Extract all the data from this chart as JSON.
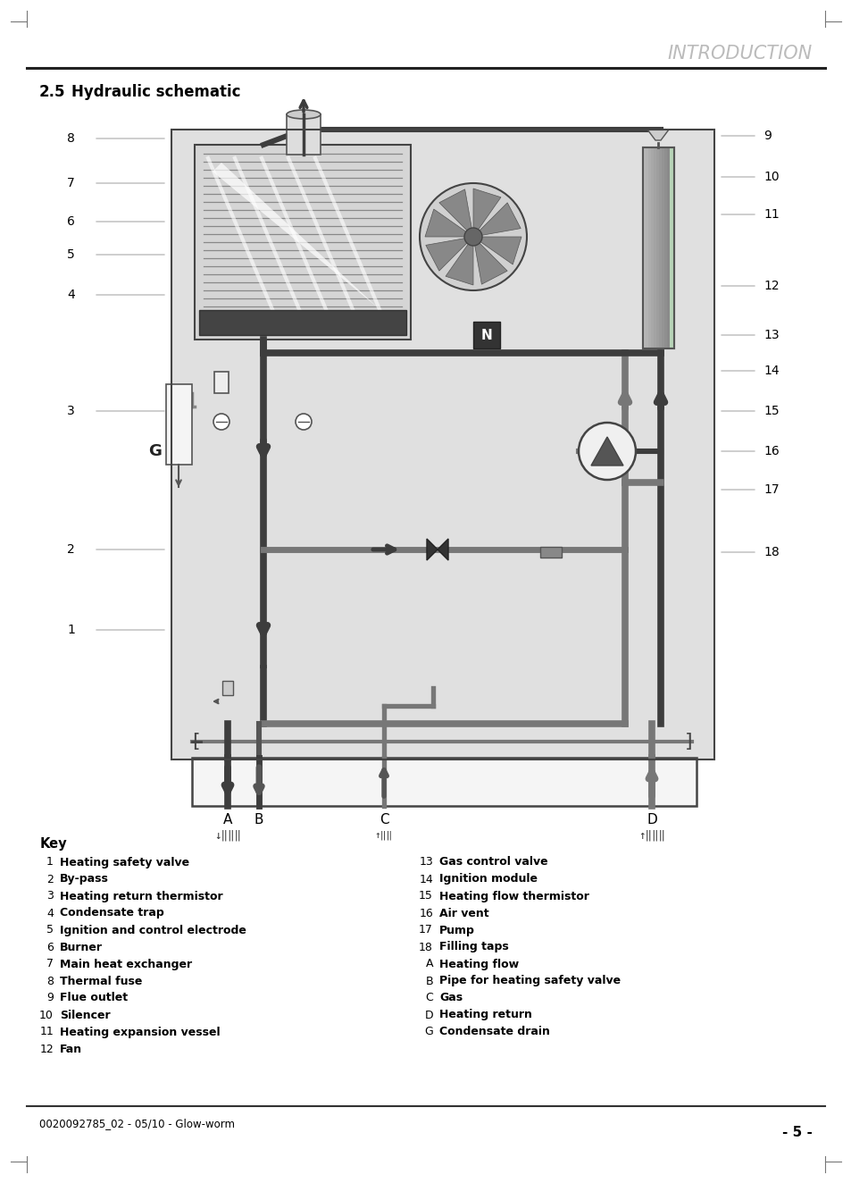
{
  "title_header": "INTRODUCTION",
  "section_title": "2.5",
  "section_title2": "Hydraulic schematic",
  "footer_text": "0020092785_02 - 05/10 - Glow-worm",
  "page_number": "- 5 -",
  "key_title": "Key",
  "key_left": [
    [
      "1",
      "Heating safety valve"
    ],
    [
      "2",
      "By-pass"
    ],
    [
      "3",
      "Heating return thermistor"
    ],
    [
      "4",
      "Condensate trap"
    ],
    [
      "5",
      "Ignition and control electrode"
    ],
    [
      "6",
      "Burner"
    ],
    [
      "7",
      "Main heat exchanger"
    ],
    [
      "8",
      "Thermal fuse"
    ],
    [
      "9",
      "Flue outlet"
    ],
    [
      "10",
      "Silencer"
    ],
    [
      "11",
      "Heating expansion vessel"
    ],
    [
      "12",
      "Fan"
    ]
  ],
  "key_right": [
    [
      "13",
      "Gas control valve"
    ],
    [
      "14",
      "Ignition module"
    ],
    [
      "15",
      "Heating flow thermistor"
    ],
    [
      "16",
      "Air vent"
    ],
    [
      "17",
      "Pump"
    ],
    [
      "18",
      "Filling taps"
    ],
    [
      "A",
      "Heating flow"
    ],
    [
      "B",
      "Pipe for heating safety valve"
    ],
    [
      "C",
      "Gas"
    ],
    [
      "D",
      "Heating return"
    ],
    [
      "G",
      "Condensate drain"
    ]
  ],
  "bg_color": "#ffffff",
  "diagram_bg": "#e8e8e8",
  "pipe_dark": "#3a3a3a",
  "pipe_mid": "#666666",
  "pipe_light": "#999999"
}
